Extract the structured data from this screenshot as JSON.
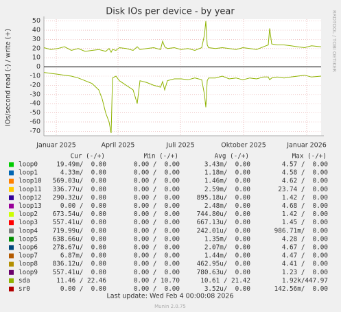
{
  "chart_data": {
    "type": "line",
    "title": "Disk IOs per device - by year",
    "y_label": "IOs/second read (-) / write (+)",
    "side_text": "RRDTOOL / TOBI OETIKER",
    "x": [
      0,
      10,
      20,
      30,
      40,
      50,
      60,
      70,
      80,
      85,
      90,
      95,
      98,
      100,
      105,
      110,
      120,
      130,
      136,
      140,
      150,
      160,
      170,
      173,
      176,
      180,
      190,
      200,
      210,
      220,
      230,
      234,
      236,
      238,
      240,
      250,
      260,
      270,
      280,
      290,
      300,
      310,
      320,
      327,
      329,
      332,
      340,
      350,
      360,
      370,
      380,
      390,
      404
    ],
    "xlim": [
      0,
      404
    ],
    "xticks": [
      {
        "value": 18,
        "label": "Januar 2025"
      },
      {
        "value": 108,
        "label": "April 2025"
      },
      {
        "value": 199,
        "label": "Juli 2025"
      },
      {
        "value": 291,
        "label": "Oktober 2025"
      },
      {
        "value": 383,
        "label": "Januar 2026"
      }
    ],
    "ylim": [
      -75,
      52
    ],
    "yticks": [
      -70,
      -60,
      -50,
      -40,
      -30,
      -20,
      -10,
      0,
      10,
      20,
      30,
      40,
      50
    ],
    "grid": true,
    "series": [
      {
        "color": "#8fb300",
        "values": [
          21,
          19,
          20,
          22,
          18,
          20,
          17,
          18,
          19,
          18,
          17,
          20,
          16,
          19,
          18,
          21,
          20,
          18,
          22,
          19,
          20,
          21,
          19,
          28,
          22,
          20,
          21,
          19,
          20,
          18,
          21,
          35,
          50,
          24,
          21,
          20,
          21,
          20,
          19,
          21,
          20,
          19,
          22,
          24,
          42,
          25,
          24,
          24,
          23,
          22,
          21,
          23,
          22
        ]
      },
      {
        "color": "#8fb300",
        "values": [
          -6,
          -7,
          -8,
          -9,
          -10,
          -12,
          -15,
          -18,
          -25,
          -35,
          -50,
          -60,
          -72,
          -12,
          -10,
          -15,
          -20,
          -25,
          -40,
          -15,
          -17,
          -20,
          -22,
          -16,
          -25,
          -15,
          -13,
          -13,
          -14,
          -12,
          -14,
          -30,
          -44,
          -15,
          -12,
          -12,
          -10,
          -13,
          -12,
          -14,
          -12,
          -13,
          -11,
          -11,
          -14,
          -12,
          -11,
          -12,
          -11,
          -10,
          -9,
          -11,
          -10
        ]
      }
    ],
    "legend": {
      "headers": [
        "Cur (-/+)",
        "Min (-/+)",
        "Avg (-/+)",
        "Max (-/+)"
      ],
      "rows": [
        {
          "name": "loop0",
          "color": "#00cc00",
          "cur": "19.49m/  0.00",
          "min": "0.00 /  0.00",
          "avg": "3.43m/  0.00",
          "max": "4.57 /  0.00"
        },
        {
          "name": "loop1",
          "color": "#0066b3",
          "cur": "4.33m/  0.00",
          "min": "0.00 /  0.00",
          "avg": "1.18m/  0.00",
          "max": "4.58 /  0.00"
        },
        {
          "name": "loop10",
          "color": "#ff8000",
          "cur": "569.03u/  0.00",
          "min": "0.00 /  0.00",
          "avg": "1.46m/  0.00",
          "max": "4.62 /  0.00"
        },
        {
          "name": "loop11",
          "color": "#ffcc00",
          "cur": "336.77u/  0.00",
          "min": "0.00 /  0.00",
          "avg": "2.59m/  0.00",
          "max": "23.74 /  0.00"
        },
        {
          "name": "loop12",
          "color": "#330099",
          "cur": "290.32u/  0.00",
          "min": "0.00 /  0.00",
          "avg": "895.18u/  0.00",
          "max": "1.42 /  0.00"
        },
        {
          "name": "loop13",
          "color": "#990099",
          "cur": "0.00 /  0.00",
          "min": "0.00 /  0.00",
          "avg": "2.48m/  0.00",
          "max": "4.68 /  0.00"
        },
        {
          "name": "loop2",
          "color": "#ccff00",
          "cur": "673.54u/  0.00",
          "min": "0.00 /  0.00",
          "avg": "744.80u/  0.00",
          "max": "1.42 /  0.00"
        },
        {
          "name": "loop3",
          "color": "#ff0000",
          "cur": "557.41u/  0.00",
          "min": "0.00 /  0.00",
          "avg": "667.13u/  0.00",
          "max": "1.45 /  0.00"
        },
        {
          "name": "loop4",
          "color": "#808080",
          "cur": "719.99u/  0.00",
          "min": "0.00 /  0.00",
          "avg": "242.01u/  0.00",
          "max": "986.71m/  0.00"
        },
        {
          "name": "loop5",
          "color": "#008f00",
          "cur": "638.66u/  0.00",
          "min": "0.00 /  0.00",
          "avg": "1.35m/  0.00",
          "max": "4.28 /  0.00"
        },
        {
          "name": "loop6",
          "color": "#00487d",
          "cur": "278.67u/  0.00",
          "min": "0.00 /  0.00",
          "avg": "2.07m/  0.00",
          "max": "4.67 /  0.00"
        },
        {
          "name": "loop7",
          "color": "#b35a00",
          "cur": "6.87m/  0.00",
          "min": "0.00 /  0.00",
          "avg": "1.44m/  0.00",
          "max": "4.47 /  0.00"
        },
        {
          "name": "loop8",
          "color": "#b38f00",
          "cur": "836.12u/  0.00",
          "min": "0.00 /  0.00",
          "avg": "462.95u/  0.00",
          "max": "4.41 /  0.00"
        },
        {
          "name": "loop9",
          "color": "#6b006b",
          "cur": "557.41u/  0.00",
          "min": "0.00 /  0.00",
          "avg": "780.63u/  0.00",
          "max": "1.23 /  0.00"
        },
        {
          "name": "sda",
          "color": "#8fb300",
          "cur": "11.46 / 22.46",
          "min": "0.00 / 10.70",
          "avg": "10.61 / 21.42",
          "max": "1.92k/447.97"
        },
        {
          "name": "sr0",
          "color": "#b30000",
          "cur": "0.00 /  0.00",
          "min": "0.00 /  0.00",
          "avg": "3.52u/  0.00",
          "max": "142.56m/  0.00"
        }
      ]
    },
    "last_update": "Last update: Wed Feb  4 00:00:08 2026",
    "footer": "Munin 2.0.75"
  }
}
